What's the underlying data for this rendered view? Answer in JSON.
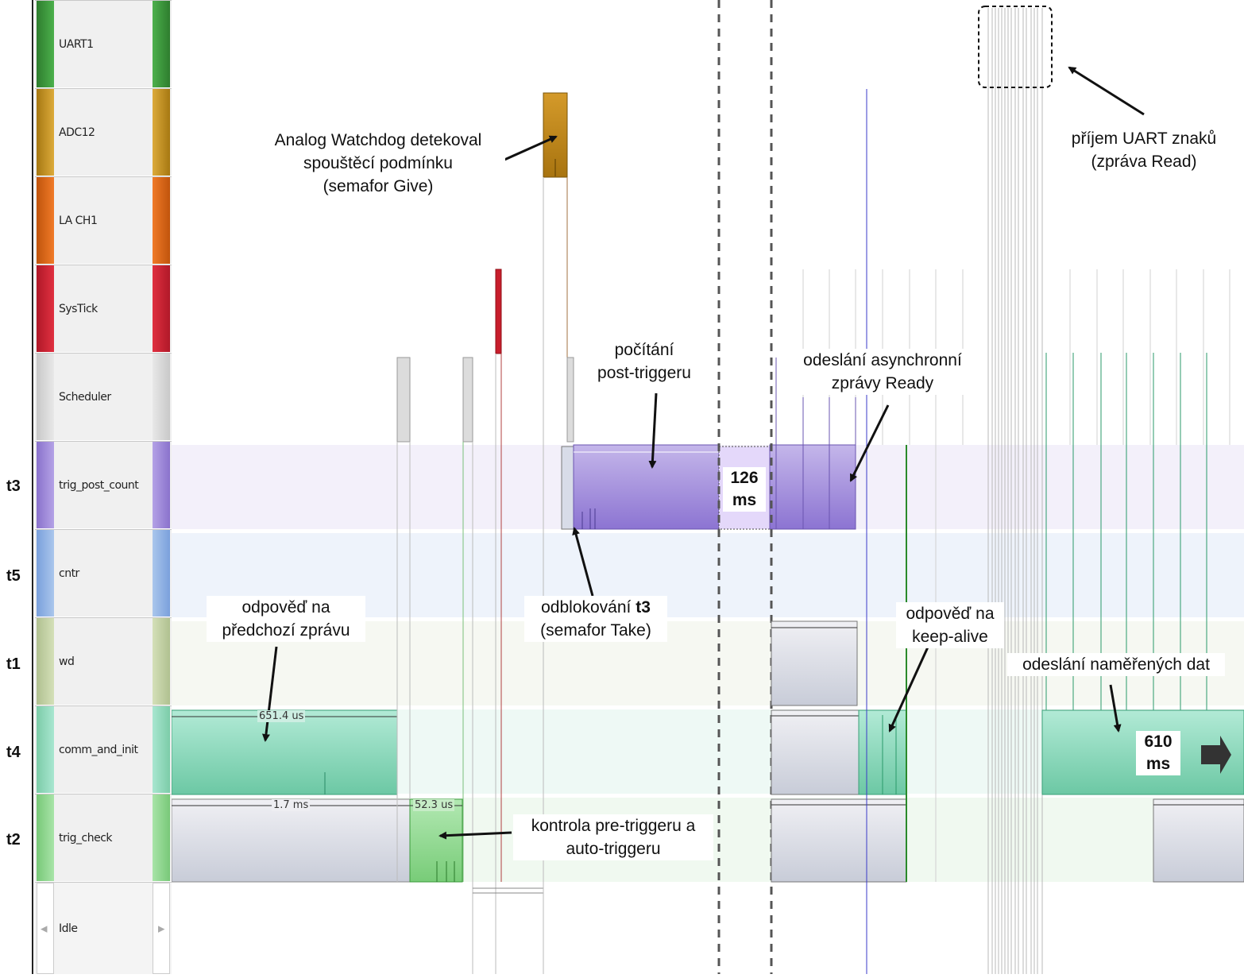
{
  "tasks": [
    {
      "name": "UART1",
      "color": "#3c9a3c"
    },
    {
      "name": "ADC12",
      "color": "#c8961e"
    },
    {
      "name": "LA CH1",
      "color": "#e06a1c"
    },
    {
      "name": "SysTick",
      "color": "#d02030"
    },
    {
      "name": "Scheduler",
      "color": "#d8d8d8"
    },
    {
      "name": "trig_post_count",
      "color": "#9a86d6",
      "id": "t3"
    },
    {
      "name": "cntr",
      "color": "#8aaee0",
      "id": "t5"
    },
    {
      "name": "wd",
      "color": "#c2d0a2",
      "id": "t1"
    },
    {
      "name": "comm_and_init",
      "color": "#8fd8bf",
      "id": "t4"
    },
    {
      "name": "trig_check",
      "color": "#8fd88f",
      "id": "t2"
    },
    {
      "name": "Idle",
      "color": "#ffffff"
    }
  ],
  "durations": {
    "comm": "651.4 us",
    "trig_check_long": "1.7 ms",
    "trig_check_short": "52.3 us"
  },
  "gap_label": {
    "value": "126",
    "unit": "ms"
  },
  "end_label": {
    "value": "610",
    "unit": "ms"
  },
  "annotations": {
    "watchdog": [
      "Analog Watchdog detekoval",
      "spouštěcí podmínku",
      "(semafor Give)"
    ],
    "post_count": [
      "počítání",
      "post-triggeru"
    ],
    "async_ready": [
      "odeslání asynchronní",
      "zprávy Ready"
    ],
    "uart": [
      "příjem UART znaků",
      "(zpráva Read)"
    ],
    "prev_reply": [
      "odpověď na",
      "předchozí zprávu"
    ],
    "unblock_prefix": "odblokování ",
    "unblock_bold": "t3",
    "unblock_line2": "(semafor Take)",
    "keepalive": [
      "odpověď na",
      "keep-alive"
    ],
    "measured": "odeslání naměřených dat",
    "pretrigger": [
      "kontrola pre-triggeru a",
      "auto-triggeru"
    ]
  }
}
